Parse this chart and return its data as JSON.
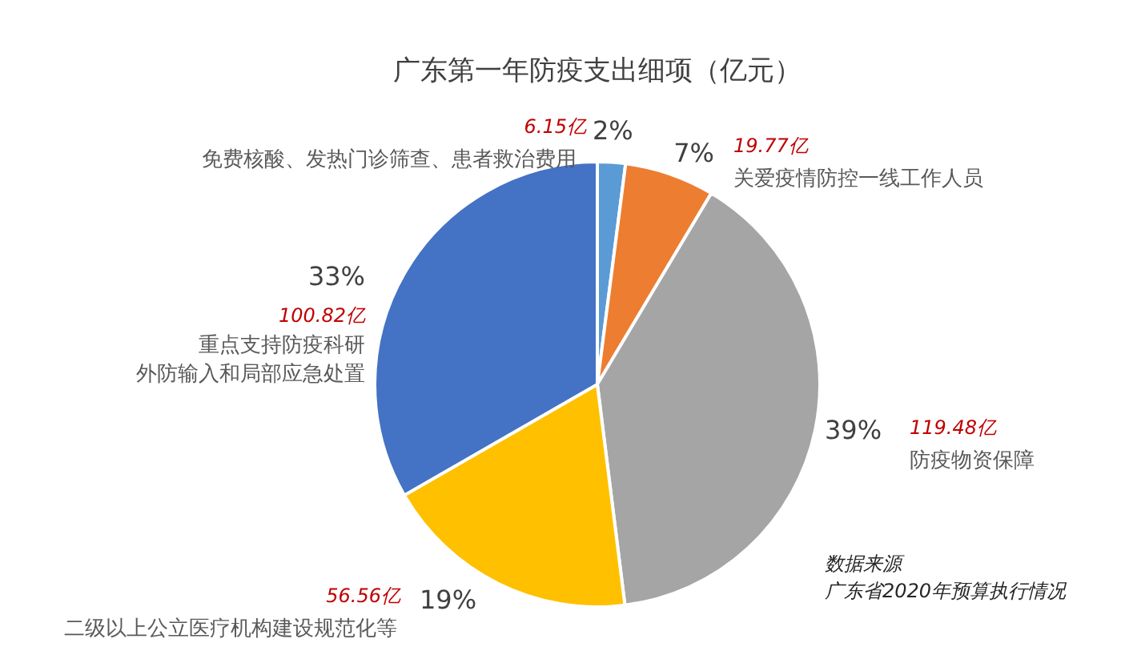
{
  "chart_data": {
    "type": "pie",
    "title": "广东第一年防疫支出细项（亿元）",
    "categories": [
      "免费核酸、发热门诊筛查、患者救治费用",
      "关爱疫情防控一线工作人员",
      "防疫物资保障",
      "二级以上公立医疗机构建设规范化等",
      "重点支持防疫科研外防输入和局部应急处置"
    ],
    "values": [
      6.15,
      19.77,
      119.48,
      56.56,
      100.82
    ],
    "colors": [
      "#5b9bd5",
      "#ed7d31",
      "#a5a5a5",
      "#ffc000",
      "#4472c4"
    ],
    "value_labels": [
      "6.15亿",
      "19.77亿",
      "119.48亿",
      "56.56亿",
      "100.82亿"
    ],
    "annotations": [
      {
        "text": "2%",
        "x": "免费核酸、发热门诊筛查、患者救治费用"
      },
      {
        "text": "7%",
        "x": "关爱疫情防控一线工作人员"
      },
      {
        "text": "39%",
        "x": "防疫物资保障"
      },
      {
        "text": "19%",
        "x": "二级以上公立医疗机构建设规范化等"
      },
      {
        "text": "33%",
        "x": "重点支持防疫科研外防输入和局部应急处置"
      },
      "数据来源",
      "广东省2020年预算执行情况"
    ],
    "legend": false
  }
}
